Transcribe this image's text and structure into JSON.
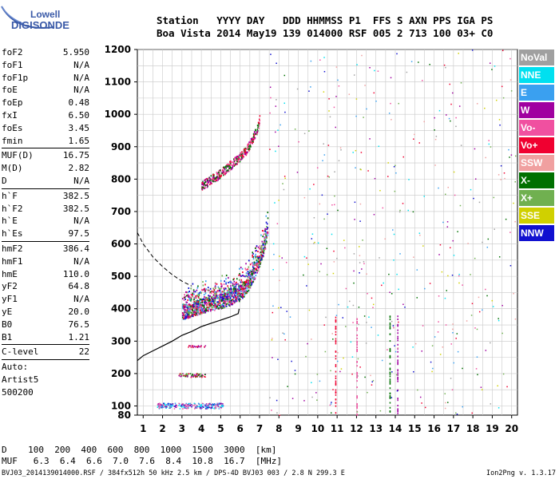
{
  "logo": {
    "line1": "Lowell",
    "line2": "DIGISONDE"
  },
  "header": {
    "row1": "Station   YYYY DAY   DDD HHMMSS P1  FFS S AXN PPS IGA PS",
    "row2": "Boa Vista 2014 May19 139 014000 RSF 005 2 713 100 03+ C0"
  },
  "params": [
    {
      "group": [
        {
          "label": "foF2",
          "value": "5.950"
        },
        {
          "label": "foF1",
          "value": "N/A"
        },
        {
          "label": "foF1p",
          "value": "N/A"
        },
        {
          "label": "foE",
          "value": "N/A"
        },
        {
          "label": "foEp",
          "value": "0.48"
        },
        {
          "label": "fxI",
          "value": "6.50"
        },
        {
          "label": "foEs",
          "value": "3.45"
        },
        {
          "label": "fmin",
          "value": "1.65"
        }
      ]
    },
    {
      "group": [
        {
          "label": "MUF(D)",
          "value": "16.75"
        },
        {
          "label": "M(D)",
          "value": "2.82"
        },
        {
          "label": "D",
          "value": "N/A"
        }
      ]
    },
    {
      "group": [
        {
          "label": "h`F",
          "value": "382.5"
        },
        {
          "label": "h`F2",
          "value": "382.5"
        },
        {
          "label": "h`E",
          "value": "N/A"
        },
        {
          "label": "h`Es",
          "value": "97.5"
        }
      ]
    },
    {
      "group": [
        {
          "label": "hmF2",
          "value": "386.4"
        },
        {
          "label": "hmF1",
          "value": "N/A"
        },
        {
          "label": "hmE",
          "value": "110.0"
        },
        {
          "label": "yF2",
          "value": "64.8"
        },
        {
          "label": "yF1",
          "value": "N/A"
        },
        {
          "label": "yE",
          "value": "20.0"
        },
        {
          "label": "B0",
          "value": "76.5"
        },
        {
          "label": "B1",
          "value": "1.21"
        }
      ]
    },
    {
      "group": [
        {
          "label": "C-level",
          "value": "22"
        }
      ]
    }
  ],
  "autoscaling": {
    "line1": "Auto:",
    "line2": "Artist5",
    "line3": "500200"
  },
  "legend": [
    {
      "name": "NoVal",
      "color": "#a0a0a0"
    },
    {
      "name": "NNE",
      "color": "#00e0f0"
    },
    {
      "name": "E",
      "color": "#3aa0f0"
    },
    {
      "name": "W",
      "color": "#a000a0"
    },
    {
      "name": "Vo-",
      "color": "#f050a0"
    },
    {
      "name": "Vo+",
      "color": "#f00030"
    },
    {
      "name": "SSW",
      "color": "#f0a0a0"
    },
    {
      "name": "X-",
      "color": "#007000"
    },
    {
      "name": "X+",
      "color": "#70b050"
    },
    {
      "name": "SSE",
      "color": "#d0d000"
    },
    {
      "name": "NNW",
      "color": "#1010d0"
    }
  ],
  "muf_table": {
    "d_row": "D    100  200  400  600  800  1000  1500  3000  [km]",
    "muf_row": "MUF   6.3  6.4  6.6  7.0  7.6  8.4  10.8  16.7  [MHz]"
  },
  "footer": {
    "left": "BVJ03_2014139014000.RSF / 384fx512h 50 kHz 2.5 km / DPS-4D BVJ03 003 / 2.8 N 299.3 E",
    "right": "Ion2Png v. 1.3.17"
  },
  "chart_data": {
    "type": "scatter",
    "x_ticks": [
      "1",
      "2",
      "3",
      "4",
      "5",
      "6",
      "7",
      "8",
      "9",
      "10",
      "11",
      "12",
      "13",
      "14",
      "15",
      "16",
      "17",
      "18",
      "19",
      "20"
    ],
    "y_ticks": [
      "80",
      "100",
      "200",
      "300",
      "400",
      "500",
      "600",
      "700",
      "800",
      "900",
      "1000",
      "1100",
      "1200"
    ],
    "xlim": [
      0.7,
      20.3
    ],
    "ylim": [
      80,
      1200
    ],
    "x_unit": "MHz",
    "y_unit": "km",
    "grid": true,
    "traces": [
      {
        "name": "F2 o-trace",
        "x": [
          3.0,
          3.5,
          4.0,
          4.5,
          5.0,
          5.5,
          6.0,
          6.3,
          6.6,
          6.9,
          7.2,
          7.4
        ],
        "y": [
          390,
          400,
          410,
          418,
          425,
          435,
          450,
          470,
          500,
          540,
          590,
          640
        ]
      },
      {
        "name": "F2 second hop",
        "x": [
          4.0,
          4.5,
          5.0,
          5.5,
          6.0,
          6.3,
          6.6,
          6.9,
          7.0
        ],
        "y": [
          780,
          800,
          820,
          845,
          870,
          890,
          920,
          960,
          990
        ]
      },
      {
        "name": "Es",
        "x": [
          1.7,
          2.5,
          3.0,
          3.5,
          4.0,
          4.5,
          5.0
        ],
        "y": [
          100,
          100,
          100,
          100,
          100,
          100,
          100
        ]
      }
    ],
    "profile_curve": {
      "x": [
        0.7,
        1.0,
        1.5,
        2.0,
        2.5,
        3.0,
        3.5,
        4.0,
        4.5,
        5.0,
        5.5,
        5.9,
        5.95
      ],
      "y": [
        240,
        255,
        270,
        285,
        300,
        318,
        330,
        345,
        355,
        365,
        375,
        385,
        400
      ]
    },
    "dashed_curve": {
      "x": [
        0.7,
        1.0,
        1.5,
        2.0,
        2.5,
        3.0,
        3.5
      ],
      "y": [
        635,
        600,
        560,
        530,
        505,
        485,
        470
      ]
    }
  }
}
